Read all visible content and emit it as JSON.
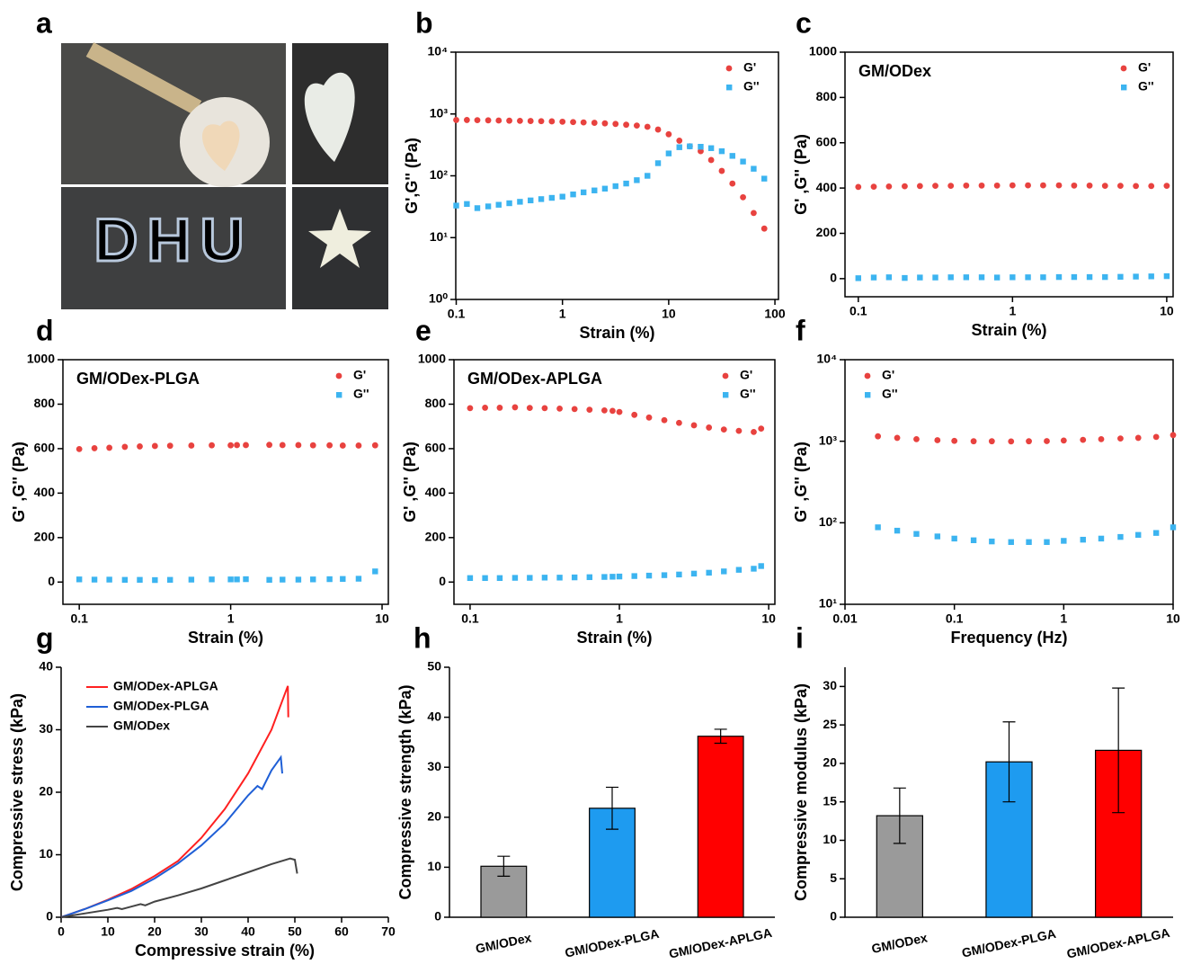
{
  "figure_a": {
    "label": "a",
    "writing": "DHU"
  },
  "chart_data": [
    {
      "panel": "b",
      "type": "scatter",
      "xscale": "log",
      "yscale": "log",
      "legend": "upper right",
      "xlabel": "Strain (%)",
      "ylabel": "G',G'' (Pa)",
      "xlim": [
        0.099,
        108
      ],
      "ylim": [
        1,
        10000
      ],
      "xticks": [
        0.1,
        1,
        10,
        100
      ],
      "yticks": [
        {
          "value": 1,
          "label": "10⁰"
        },
        {
          "value": 10,
          "label": "10¹"
        },
        {
          "value": 100,
          "label": "10²"
        },
        {
          "value": 1000,
          "label": "10³"
        },
        {
          "value": 10000,
          "label": "10⁴"
        }
      ],
      "x": [
        0.1,
        0.126,
        0.158,
        0.2,
        0.251,
        0.316,
        0.398,
        0.501,
        0.631,
        0.794,
        1,
        1.26,
        1.58,
        2,
        2.51,
        3.16,
        3.98,
        5.01,
        6.31,
        7.94,
        10,
        12.6,
        15.8,
        20,
        25.1,
        31.6,
        39.8,
        50.1,
        63.1,
        79.4
      ],
      "series": [
        {
          "name": "G'",
          "color": "#e8423f",
          "marker": "circle",
          "values": [
            800,
            800,
            795,
            790,
            785,
            780,
            775,
            770,
            765,
            760,
            750,
            740,
            730,
            720,
            705,
            690,
            670,
            650,
            620,
            560,
            470,
            370,
            300,
            250,
            180,
            120,
            75,
            45,
            25,
            14
          ]
        },
        {
          "name": "G''",
          "color": "#3cb4f0",
          "marker": "square",
          "values": [
            33,
            35,
            30,
            32,
            34,
            36,
            38,
            40,
            42,
            44,
            46,
            50,
            54,
            58,
            62,
            68,
            75,
            85,
            100,
            160,
            230,
            290,
            300,
            295,
            280,
            250,
            210,
            170,
            130,
            90
          ]
        }
      ]
    },
    {
      "panel": "c",
      "type": "scatter",
      "xscale": "log",
      "yscale": "linear",
      "legend": "upper right",
      "annotation": "GM/ODex",
      "xlabel": "Strain (%)",
      "ylabel": "G' ,G'' (Pa)",
      "xlim": [
        0.082,
        11
      ],
      "ylim": [
        -80,
        1000
      ],
      "xticks": [
        0.1,
        1,
        10
      ],
      "yticks": [
        0,
        200,
        400,
        600,
        800,
        1000
      ],
      "x": [
        0.1,
        0.126,
        0.158,
        0.2,
        0.251,
        0.316,
        0.398,
        0.501,
        0.631,
        0.794,
        1,
        1.26,
        1.58,
        2,
        2.51,
        3.16,
        3.98,
        5.01,
        6.31,
        7.94,
        10
      ],
      "series": [
        {
          "name": "G'",
          "color": "#e8423f",
          "marker": "circle",
          "values": [
            405,
            406,
            407,
            408,
            409,
            410,
            410,
            411,
            411,
            411,
            412,
            412,
            412,
            412,
            411,
            411,
            410,
            410,
            409,
            409,
            410
          ]
        },
        {
          "name": "G''",
          "color": "#3cb4f0",
          "marker": "square",
          "values": [
            2,
            5,
            6,
            3,
            5,
            5,
            6,
            6,
            6,
            5,
            6,
            6,
            6,
            7,
            7,
            7,
            7,
            8,
            9,
            10,
            11
          ]
        }
      ]
    },
    {
      "panel": "d",
      "type": "scatter",
      "xscale": "log",
      "yscale": "linear",
      "legend": "upper right",
      "annotation": "GM/ODex-PLGA",
      "xlabel": "Strain (%)",
      "ylabel": "G' ,G'' (Pa)",
      "xlim": [
        0.078,
        11
      ],
      "ylim": [
        -100,
        1000
      ],
      "xticks": [
        0.1,
        1,
        10
      ],
      "yticks": [
        0,
        200,
        400,
        600,
        800,
        1000
      ],
      "x": [
        0.1,
        0.126,
        0.158,
        0.2,
        0.251,
        0.316,
        0.398,
        0.55,
        0.75,
        1,
        1.1,
        1.26,
        1.8,
        2.2,
        2.8,
        3.5,
        4.5,
        5.5,
        7,
        9
      ],
      "series": [
        {
          "name": "G'",
          "color": "#e8423f",
          "marker": "circle",
          "values": [
            598,
            602,
            604,
            608,
            610,
            612,
            613,
            614,
            615,
            615,
            616,
            616,
            617,
            616,
            616,
            615,
            615,
            614,
            614,
            615
          ]
        },
        {
          "name": "G''",
          "color": "#3cb4f0",
          "marker": "square",
          "values": [
            12,
            11,
            11,
            10,
            10,
            9,
            10,
            11,
            12,
            12,
            12,
            13,
            10,
            11,
            11,
            12,
            13,
            14,
            15,
            48
          ]
        }
      ]
    },
    {
      "panel": "e",
      "type": "scatter",
      "xscale": "log",
      "yscale": "linear",
      "legend": "upper right",
      "annotation": "GM/ODex-APLGA",
      "xlabel": "Strain (%)",
      "ylabel": "G' ,G'' (Pa)",
      "xlim": [
        0.078,
        11
      ],
      "ylim": [
        -100,
        1000
      ],
      "xticks": [
        0.1,
        1,
        10
      ],
      "yticks": [
        0,
        200,
        400,
        600,
        800,
        1000
      ],
      "x": [
        0.1,
        0.126,
        0.158,
        0.2,
        0.251,
        0.316,
        0.398,
        0.501,
        0.631,
        0.794,
        0.9,
        1,
        1.26,
        1.58,
        2,
        2.51,
        3.16,
        3.98,
        5.01,
        6.31,
        7.94,
        8.9
      ],
      "series": [
        {
          "name": "G'",
          "color": "#e8423f",
          "marker": "circle",
          "values": [
            782,
            784,
            784,
            786,
            783,
            782,
            780,
            778,
            775,
            772,
            770,
            765,
            752,
            740,
            728,
            716,
            705,
            695,
            686,
            680,
            675,
            690
          ]
        },
        {
          "name": "G''",
          "color": "#3cb4f0",
          "marker": "square",
          "values": [
            18,
            18,
            18,
            19,
            19,
            20,
            20,
            21,
            22,
            23,
            24,
            25,
            27,
            29,
            31,
            34,
            38,
            42,
            48,
            55,
            60,
            72
          ]
        }
      ]
    },
    {
      "panel": "f",
      "type": "scatter",
      "xscale": "log",
      "yscale": "log",
      "legend": "upper left",
      "xlabel": "Frequency (Hz)",
      "ylabel": "G' ,G'' (Pa)",
      "xlim": [
        0.01,
        10
      ],
      "ylim": [
        10,
        10000
      ],
      "xticks": [
        0.01,
        0.1,
        1,
        10
      ],
      "yticks": [
        {
          "value": 10,
          "label": "10¹"
        },
        {
          "value": 100,
          "label": "10²"
        },
        {
          "value": 1000,
          "label": "10³"
        },
        {
          "value": 10000,
          "label": "10⁴"
        }
      ],
      "x": [
        0.02,
        0.03,
        0.045,
        0.07,
        0.1,
        0.15,
        0.22,
        0.33,
        0.48,
        0.7,
        1,
        1.5,
        2.2,
        3.3,
        4.8,
        7,
        10
      ],
      "series": [
        {
          "name": "G'",
          "color": "#e8423f",
          "marker": "circle",
          "values": [
            1150,
            1100,
            1060,
            1030,
            1010,
            1000,
            1000,
            995,
            1000,
            1005,
            1020,
            1040,
            1060,
            1080,
            1100,
            1130,
            1190
          ]
        },
        {
          "name": "G''",
          "color": "#3cb4f0",
          "marker": "square",
          "values": [
            88,
            80,
            73,
            68,
            64,
            61,
            59,
            58,
            58,
            58,
            60,
            62,
            64,
            67,
            71,
            75,
            88
          ]
        }
      ]
    },
    {
      "panel": "g",
      "type": "line",
      "legend": "upper left",
      "xlabel": "Compressive strain (%)",
      "ylabel": "Compressive stress (kPa)",
      "xlim": [
        0,
        70
      ],
      "ylim": [
        0,
        40
      ],
      "xticks": [
        0,
        10,
        20,
        30,
        40,
        50,
        60,
        70
      ],
      "yticks": [
        0,
        10,
        20,
        30,
        40
      ],
      "series": [
        {
          "name": "GM/ODex-APLGA",
          "color": "#ff2020",
          "x": [
            0,
            5,
            10,
            15,
            20,
            25,
            30,
            35,
            40,
            45,
            48.5,
            48.6
          ],
          "values": [
            0,
            1.3,
            2.8,
            4.5,
            6.6,
            9,
            12.7,
            17.3,
            23,
            30,
            37,
            32
          ]
        },
        {
          "name": "GM/ODex-PLGA",
          "color": "#1f5fd6",
          "x": [
            0,
            5,
            10,
            15,
            20,
            25,
            30,
            35,
            40,
            42,
            43,
            45,
            47,
            47.3
          ],
          "values": [
            0,
            1.3,
            2.7,
            4.2,
            6.2,
            8.6,
            11.5,
            15,
            19.5,
            21,
            20.5,
            23.5,
            25.6,
            23
          ]
        },
        {
          "name": "GM/ODex",
          "color": "#444444",
          "x": [
            0,
            5,
            10,
            12,
            13,
            15,
            17,
            18,
            20,
            25,
            30,
            35,
            40,
            45,
            49,
            50,
            50.5
          ],
          "values": [
            0,
            0.6,
            1.2,
            1.5,
            1.3,
            1.7,
            2.1,
            1.9,
            2.5,
            3.5,
            4.6,
            5.9,
            7.2,
            8.5,
            9.4,
            9.2,
            7
          ]
        }
      ]
    },
    {
      "panel": "h",
      "type": "bar",
      "ylabel": "Compressive strength (kPa)",
      "categories": [
        "GM/ODex",
        "GM/ODex-PLGA",
        "GM/ODex-APLGA"
      ],
      "values": [
        10.2,
        21.8,
        36.2
      ],
      "errors": [
        2,
        4.2,
        1.4
      ],
      "colors": [
        "#9a9a9a",
        "#1e9bf0",
        "#ff0000"
      ],
      "ylim": [
        0,
        50
      ],
      "yticks": [
        0,
        10,
        20,
        30,
        40,
        50
      ]
    },
    {
      "panel": "i",
      "type": "bar",
      "ylabel": "Compressive modulus (kPa)",
      "categories": [
        "GM/ODex",
        "GM/ODex-PLGA",
        "GM/ODex-APLGA"
      ],
      "values": [
        13.2,
        20.2,
        21.7
      ],
      "errors": [
        3.6,
        5.2,
        8.1
      ],
      "colors": [
        "#9a9a9a",
        "#1e9bf0",
        "#ff0000"
      ],
      "ylim": [
        0,
        32.5
      ],
      "yticks": [
        0,
        5,
        10,
        15,
        20,
        25,
        30
      ]
    }
  ]
}
